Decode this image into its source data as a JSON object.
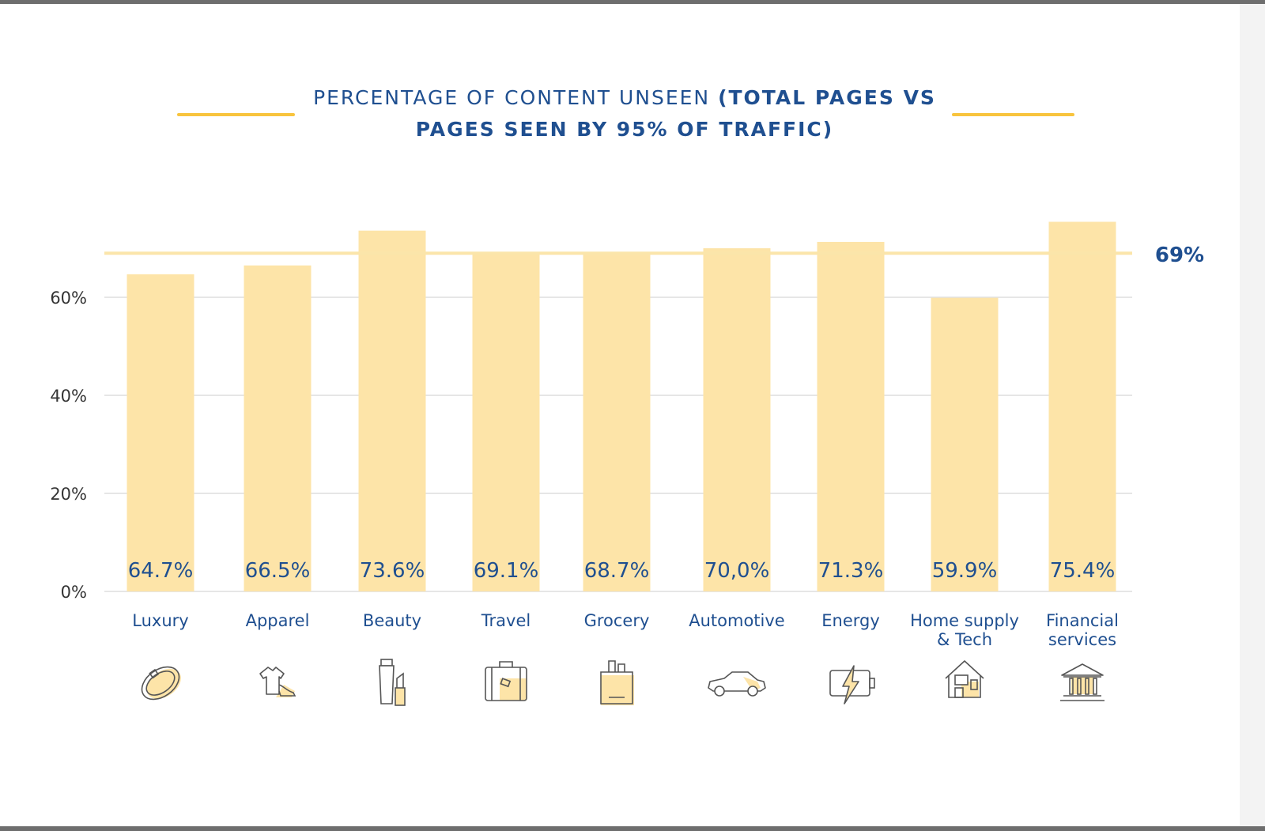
{
  "chart_data": {
    "type": "bar",
    "title_light": "PERCENTAGE OF CONTENT UNSEEN",
    "title_bold": "(TOTAL PAGES VS PAGES SEEN BY 95% OF TRAFFIC)",
    "categories": [
      "Luxury",
      "Apparel",
      "Beauty",
      "Travel",
      "Grocery",
      "Automotive",
      "Energy",
      "Home supply & Tech",
      "Financial services"
    ],
    "category_lines": [
      [
        "Luxury"
      ],
      [
        "Apparel"
      ],
      [
        "Beauty"
      ],
      [
        "Travel"
      ],
      [
        "Grocery"
      ],
      [
        "Automotive"
      ],
      [
        "Energy"
      ],
      [
        "Home supply",
        "& Tech"
      ],
      [
        "Financial",
        "services"
      ]
    ],
    "values": [
      64.7,
      66.5,
      73.6,
      69.1,
      68.7,
      70.0,
      71.3,
      59.9,
      75.4
    ],
    "value_labels": [
      "64.7%",
      "66.5%",
      "73.6%",
      "69.1%",
      "68.7%",
      "70,0%",
      "71.3%",
      "59.9%",
      "75.4%"
    ],
    "yticks": [
      0,
      20,
      40,
      60
    ],
    "ytick_labels": [
      "0%",
      "20%",
      "40%",
      "60%"
    ],
    "ylim": [
      0,
      80
    ],
    "reference_line": {
      "value": 69,
      "label": "69%"
    },
    "grid": true,
    "colors": {
      "bar": "#fde4a8",
      "reference": "#fbe5aa",
      "value_label": "#1f4f90",
      "category_label": "#1f4f90",
      "accent": "#f8c43e",
      "grid": "#dedede"
    },
    "icons": [
      "ring-icon",
      "apparel-icon",
      "cosmetics-icon",
      "suitcase-icon",
      "grocery-bag-icon",
      "car-icon",
      "battery-bolt-icon",
      "home-tech-icon",
      "bank-icon"
    ]
  }
}
